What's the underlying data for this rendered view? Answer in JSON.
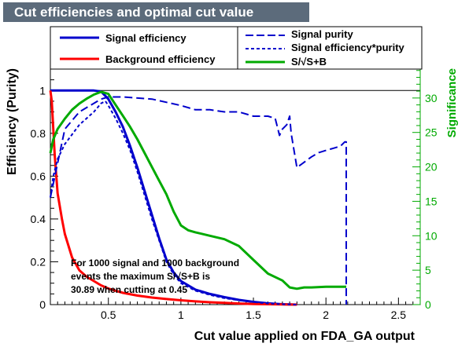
{
  "chart_data": {
    "type": "line",
    "title": "Cut efficiencies and optimal cut value",
    "xlabel": "Cut value applied on FDA_GA output",
    "ylabel": "Efficiency (Purity)",
    "y2label": "Significance",
    "xlim": [
      0.1,
      2.65
    ],
    "ylim": [
      0,
      1.1
    ],
    "y2lim": [
      0,
      34.2
    ],
    "x_ticks": [
      0.5,
      1,
      1.5,
      2,
      2.5
    ],
    "x_tick_labels": [
      "0.5",
      "1",
      "1.5",
      "2",
      "2.5"
    ],
    "y_ticks": [
      0,
      0.2,
      0.4,
      0.6,
      0.8,
      1
    ],
    "y_tick_labels": [
      "0",
      "0.2",
      "0.4",
      "0.6",
      "0.8",
      "1"
    ],
    "y2_ticks": [
      0,
      5,
      10,
      15,
      20,
      25,
      30
    ],
    "y2_tick_labels": [
      "0",
      "5",
      "10",
      "15",
      "20",
      "25",
      "30"
    ],
    "series": [
      {
        "name": "Signal efficiency",
        "axis": "left",
        "color": "#0000cc",
        "style": "solid",
        "x": [
          0.1,
          0.2,
          0.3,
          0.35,
          0.4,
          0.45,
          0.5,
          0.55,
          0.6,
          0.65,
          0.7,
          0.75,
          0.8,
          0.85,
          0.9,
          0.95,
          1.0,
          1.1,
          1.2,
          1.3,
          1.4,
          1.5,
          1.6,
          1.7,
          1.8
        ],
        "y": [
          1,
          1,
          1,
          1,
          1,
          0.995,
          0.96,
          0.9,
          0.83,
          0.74,
          0.64,
          0.53,
          0.42,
          0.31,
          0.21,
          0.15,
          0.11,
          0.07,
          0.05,
          0.035,
          0.022,
          0.013,
          0.006,
          0.002,
          0
        ]
      },
      {
        "name": "Background efficiency",
        "axis": "left",
        "color": "#ff0000",
        "style": "solid",
        "x": [
          0.1,
          0.11,
          0.13,
          0.15,
          0.18,
          0.2,
          0.25,
          0.3,
          0.35,
          0.4,
          0.45,
          0.5,
          0.55,
          0.6,
          0.7,
          0.8,
          0.9,
          1.0,
          1.1,
          1.2,
          1.3,
          1.4,
          1.5,
          1.6,
          1.7,
          1.8
        ],
        "y": [
          1,
          0.95,
          0.7,
          0.52,
          0.4,
          0.33,
          0.22,
          0.16,
          0.13,
          0.11,
          0.09,
          0.075,
          0.065,
          0.055,
          0.042,
          0.033,
          0.026,
          0.02,
          0.015,
          0.011,
          0.008,
          0.005,
          0.003,
          0.002,
          0.001,
          0
        ]
      },
      {
        "name": "Signal purity",
        "axis": "left",
        "color": "#0000cc",
        "style": "longdash",
        "x": [
          0.1,
          0.2,
          0.3,
          0.4,
          0.45,
          0.5,
          0.6,
          0.8,
          1.0,
          1.1,
          1.2,
          1.3,
          1.4,
          1.5,
          1.6,
          1.65,
          1.68,
          1.7,
          1.73,
          1.75,
          1.76,
          1.8,
          1.82,
          1.86,
          1.9,
          1.95,
          2.0,
          2.05,
          2.1,
          2.13,
          2.14
        ],
        "y": [
          0.5,
          0.82,
          0.9,
          0.94,
          0.96,
          0.97,
          0.97,
          0.96,
          0.93,
          0.91,
          0.91,
          0.9,
          0.9,
          0.88,
          0.88,
          0.87,
          0.79,
          0.82,
          0.84,
          0.88,
          0.8,
          0.64,
          0.65,
          0.67,
          0.69,
          0.71,
          0.72,
          0.73,
          0.74,
          0.76,
          0
        ]
      },
      {
        "name": "Signal efficiency*purity",
        "axis": "left",
        "color": "#0000cc",
        "style": "dash",
        "x": [
          0.1,
          0.12,
          0.15,
          0.2,
          0.3,
          0.4,
          0.45,
          0.48,
          0.5,
          0.55,
          0.6,
          0.65,
          0.7,
          0.75,
          0.8,
          0.85,
          0.9,
          0.95,
          1.0,
          1.1,
          1.2,
          1.3,
          1.4,
          1.5,
          1.6,
          1.7,
          1.8
        ],
        "y": [
          0.5,
          0.6,
          0.68,
          0.75,
          0.84,
          0.9,
          0.94,
          0.95,
          0.93,
          0.87,
          0.8,
          0.72,
          0.62,
          0.51,
          0.4,
          0.3,
          0.2,
          0.14,
          0.1,
          0.065,
          0.045,
          0.03,
          0.02,
          0.012,
          0.005,
          0.002,
          0
        ]
      },
      {
        "name": "S/√S+B",
        "axis": "right",
        "color": "#00aa00",
        "style": "solid",
        "x": [
          0.1,
          0.12,
          0.15,
          0.2,
          0.25,
          0.3,
          0.35,
          0.4,
          0.45,
          0.5,
          0.55,
          0.6,
          0.65,
          0.7,
          0.75,
          0.8,
          0.85,
          0.9,
          0.95,
          1.0,
          1.05,
          1.1,
          1.2,
          1.3,
          1.4,
          1.5,
          1.6,
          1.7,
          1.75,
          1.8,
          1.85,
          1.9,
          2.0,
          2.1,
          2.14
        ],
        "y": [
          22,
          24,
          25.5,
          27,
          28.3,
          29.2,
          29.9,
          30.5,
          30.89,
          30.6,
          29,
          27.4,
          25.8,
          24,
          22,
          20,
          18,
          16,
          13.5,
          11.5,
          10.8,
          10.5,
          10,
          9.5,
          8.5,
          6.5,
          4.5,
          3.5,
          2.5,
          2.3,
          2.5,
          2.5,
          2.6,
          2.6,
          2.6
        ]
      }
    ],
    "legend": {
      "placement": "top",
      "entries": [
        "Signal efficiency",
        "Background efficiency",
        "Signal purity",
        "Signal efficiency*purity",
        "S/√S+B"
      ]
    },
    "annotation": {
      "line1": "For 1000 signal and 1000 background",
      "line2": "events the maximum S/√S+B is",
      "line3": "30.89 when cutting at  0.45"
    }
  }
}
